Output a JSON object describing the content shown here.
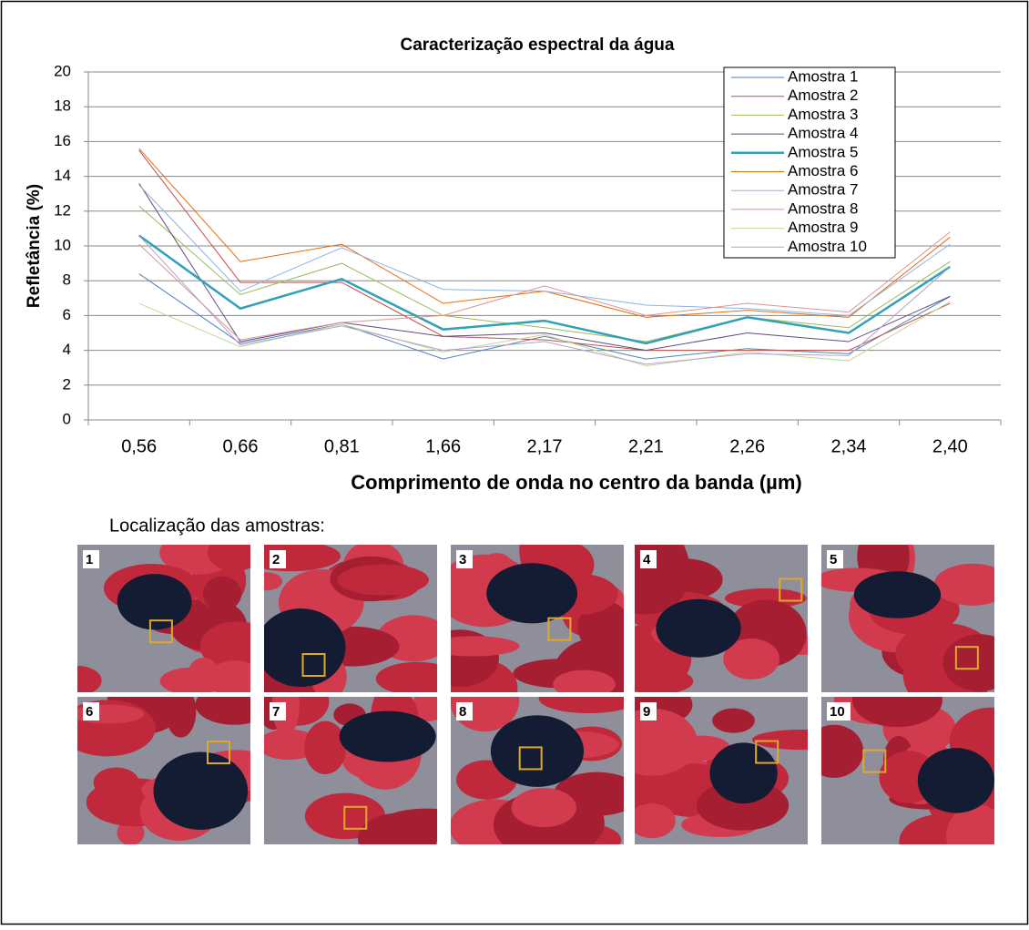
{
  "chart_data": {
    "type": "line",
    "title": "Caracterização espectral da água",
    "x_label": "Comprimento de onda no centro da banda (µm)",
    "y_label": "Refletância (%)",
    "categories": [
      "0,56",
      "0,66",
      "0,81",
      "1,66",
      "2,17",
      "2,21",
      "2,26",
      "2,34",
      "2,40"
    ],
    "ylim": [
      0,
      20
    ],
    "yticks": [
      0,
      2,
      4,
      6,
      8,
      10,
      12,
      14,
      16,
      18,
      20
    ],
    "grid": true,
    "legend": "top-right",
    "series": [
      {
        "name": "Amostra 1",
        "color": "#4f81bd",
        "width": 1,
        "values": [
          8.4,
          4.4,
          5.5,
          3.5,
          4.8,
          3.5,
          4.1,
          3.8,
          7.1
        ]
      },
      {
        "name": "Amostra 2",
        "color": "#c0504d",
        "width": 1,
        "values": [
          15.5,
          7.9,
          7.9,
          4.8,
          4.6,
          4.0,
          4.0,
          4.0,
          6.7
        ]
      },
      {
        "name": "Amostra 3",
        "color": "#9bbb59",
        "width": 1,
        "values": [
          12.3,
          7.2,
          9.0,
          6.0,
          5.3,
          4.5,
          5.9,
          5.3,
          9.1
        ]
      },
      {
        "name": "Amostra 4",
        "color": "#604a7b",
        "width": 1,
        "values": [
          13.6,
          4.5,
          5.6,
          4.8,
          5.0,
          4.0,
          5.0,
          4.5,
          7.1
        ]
      },
      {
        "name": "Amostra 5",
        "color": "#31a0b8",
        "width": 2.5,
        "values": [
          10.6,
          6.4,
          8.1,
          5.2,
          5.7,
          4.4,
          5.9,
          5.0,
          8.8
        ]
      },
      {
        "name": "Amostra 6",
        "color": "#e46c0a",
        "width": 1,
        "values": [
          15.6,
          9.1,
          10.1,
          6.7,
          7.4,
          5.9,
          6.3,
          5.9,
          10.5
        ]
      },
      {
        "name": "Amostra 7",
        "color": "#8db3e2",
        "width": 1,
        "values": [
          13.5,
          7.4,
          9.9,
          7.5,
          7.4,
          6.6,
          6.4,
          6.0,
          10.1
        ]
      },
      {
        "name": "Amostra 8",
        "color": "#d99694",
        "width": 1,
        "values": [
          10.1,
          4.6,
          5.6,
          6.0,
          7.7,
          6.0,
          6.7,
          6.2,
          10.8
        ]
      },
      {
        "name": "Amostra 9",
        "color": "#c3d69b",
        "width": 1,
        "values": [
          6.7,
          4.2,
          5.5,
          3.9,
          4.9,
          3.1,
          3.9,
          3.4,
          6.8
        ]
      },
      {
        "name": "Amostra 10",
        "color": "#b3a2c7",
        "width": 1,
        "values": [
          10.6,
          4.3,
          5.4,
          4.0,
          4.5,
          3.2,
          3.8,
          3.7,
          8.8
        ]
      }
    ]
  },
  "locations": {
    "caption": "Localização das amostras:",
    "labels": [
      "1",
      "2",
      "3",
      "4",
      "5",
      "6",
      "7",
      "8",
      "9",
      "10"
    ]
  }
}
